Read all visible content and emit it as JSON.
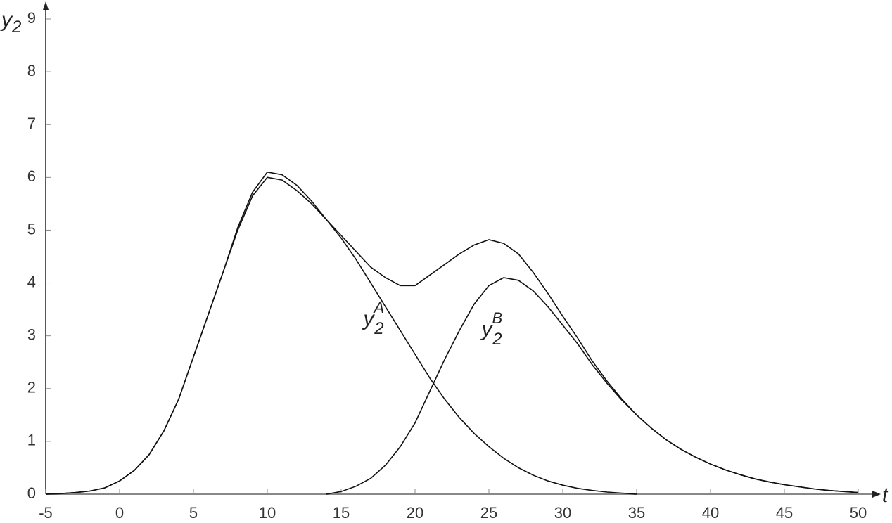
{
  "chart_data": {
    "type": "line",
    "x_label": {
      "base": "t"
    },
    "y_label": {
      "base": "y",
      "sub": "2"
    },
    "annotations": [
      {
        "base": "y",
        "sub": "2",
        "sup": "A",
        "x": 16.5,
        "y": 3.3
      },
      {
        "base": "y",
        "sub": "2",
        "sup": "B",
        "x": 24.5,
        "y": 3.1
      }
    ],
    "x": [
      -5,
      -4,
      -3,
      -2,
      -1,
      0,
      1,
      2,
      3,
      4,
      5,
      6,
      7,
      8,
      9,
      10,
      11,
      12,
      13,
      14,
      15,
      16,
      17,
      18,
      19,
      20,
      21,
      22,
      23,
      24,
      25,
      26,
      27,
      28,
      29,
      30,
      31,
      32,
      33,
      34,
      35,
      36,
      37,
      38,
      39,
      40,
      41,
      42,
      43,
      44,
      45,
      46,
      47,
      48,
      49,
      50
    ],
    "series": [
      {
        "color": "#111111",
        "values": [
          0,
          0.01,
          0.03,
          0.06,
          0.12,
          0.25,
          0.45,
          0.75,
          1.2,
          1.8,
          2.6,
          3.4,
          4.2,
          5.0,
          5.65,
          6.0,
          5.95,
          5.75,
          5.5,
          5.2,
          4.85,
          4.45,
          4.0,
          3.55,
          3.1,
          2.65,
          2.2,
          1.8,
          1.45,
          1.15,
          0.9,
          0.68,
          0.5,
          0.36,
          0.25,
          0.17,
          0.11,
          0.07,
          0.04,
          0.02,
          0,
          null,
          null,
          null,
          null,
          null,
          null,
          null,
          null,
          null,
          null,
          null,
          null,
          null,
          null,
          null
        ]
      },
      {
        "color": "#111111",
        "values": [
          null,
          null,
          null,
          null,
          null,
          null,
          null,
          null,
          null,
          null,
          null,
          null,
          null,
          null,
          null,
          null,
          null,
          null,
          null,
          0,
          0.05,
          0.15,
          0.3,
          0.55,
          0.9,
          1.35,
          1.95,
          2.55,
          3.1,
          3.6,
          3.95,
          4.1,
          4.05,
          3.85,
          3.55,
          3.2,
          2.85,
          2.45,
          2.1,
          1.78,
          1.5,
          1.25,
          1.03,
          0.85,
          0.7,
          0.57,
          0.46,
          0.37,
          0.29,
          0.23,
          0.18,
          0.14,
          0.1,
          0.07,
          0.05,
          0.03
        ]
      },
      {
        "color": "#111111",
        "values": [
          0,
          0.01,
          0.03,
          0.06,
          0.12,
          0.25,
          0.45,
          0.75,
          1.2,
          1.8,
          2.6,
          3.4,
          4.2,
          5.05,
          5.72,
          6.1,
          6.05,
          5.85,
          5.55,
          5.2,
          4.9,
          4.6,
          4.3,
          4.1,
          3.95,
          3.95,
          4.15,
          4.35,
          4.55,
          4.72,
          4.82,
          4.75,
          4.55,
          4.2,
          3.8,
          3.37,
          2.96,
          2.52,
          2.14,
          1.8,
          1.5,
          1.25,
          1.03,
          0.85,
          0.7,
          0.57,
          0.46,
          0.37,
          0.29,
          0.23,
          0.18,
          0.14,
          0.1,
          0.07,
          0.05,
          0.03
        ]
      }
    ],
    "xlim": [
      -5,
      50
    ],
    "ylim": [
      0,
      9
    ],
    "xticks": [
      -5,
      0,
      5,
      10,
      15,
      20,
      25,
      30,
      35,
      40,
      45,
      50
    ],
    "yticks": [
      0,
      1,
      2,
      3,
      4,
      5,
      6,
      7,
      8,
      9
    ],
    "grid": false
  }
}
